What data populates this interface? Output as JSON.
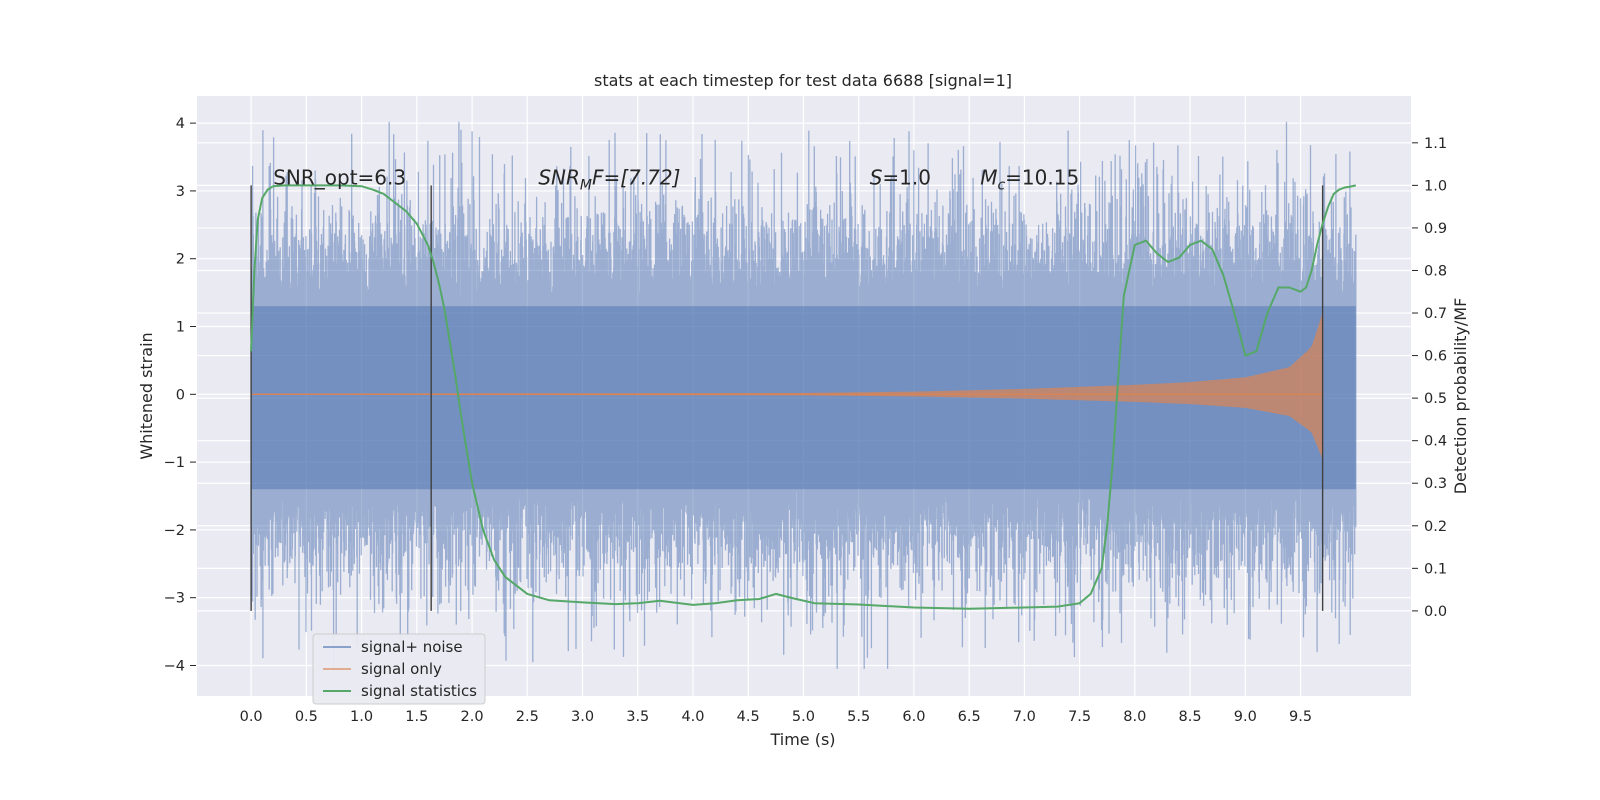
{
  "chart_data": {
    "type": "line",
    "title": "stats at each timestep for test data 6688 [signal=1]",
    "xlabel": "Time (s)",
    "ylabel_left": "Whitened strain",
    "ylabel_right": "Detection probability/MF",
    "xlim": [
      -0.49,
      10.5
    ],
    "ylim_left": [
      -4.45,
      4.4
    ],
    "ylim_right": [
      -0.2,
      1.21
    ],
    "x_ticks": [
      "0.0",
      "0.5",
      "1.0",
      "1.5",
      "2.0",
      "2.5",
      "3.0",
      "3.5",
      "4.0",
      "4.5",
      "5.0",
      "5.5",
      "6.0",
      "6.5",
      "7.0",
      "7.5",
      "8.0",
      "8.5",
      "9.0",
      "9.5"
    ],
    "y_ticks_left": [
      "4",
      "3",
      "2",
      "1",
      "0",
      "−1",
      "−2",
      "−3",
      "−4"
    ],
    "y_ticks_right": [
      "1.1",
      "1.0",
      "0.9",
      "0.8",
      "0.7",
      "0.6",
      "0.5",
      "0.4",
      "0.3",
      "0.2",
      "0.1",
      "0.0"
    ],
    "grid": true,
    "legend_position": "bottom-left",
    "annotations": [
      {
        "text": "SNR_opt=6.3",
        "x": 0.2,
        "y_right": 1.0
      },
      {
        "math": "SNR",
        "sub": "M",
        "rest": "F=[7.72]",
        "x": 2.6,
        "y_right": 1.0
      },
      {
        "math": "S",
        "rest": "=1.0",
        "x": 5.6,
        "y_right": 1.0
      },
      {
        "math": "M",
        "sub": "c",
        "rest": "=10.15",
        "x": 6.6,
        "y_right": 1.0
      }
    ],
    "vlines": [
      0.0,
      1.63,
      9.7
    ],
    "vline_range_right": [
      0.0,
      1.0
    ],
    "series": [
      {
        "name": "signal+ noise",
        "color": "#4c72b0",
        "axis": "left",
        "core_band": [
          -1.4,
          1.3
        ],
        "extent": [
          -4.05,
          4.02
        ],
        "t_start": 0.0,
        "t_end": 10.0
      },
      {
        "name": "signal only",
        "color": "#dd8452",
        "axis": "left",
        "amplitude_points": [
          [
            0.0,
            0.01
          ],
          [
            5.0,
            0.02
          ],
          [
            6.0,
            0.04
          ],
          [
            7.0,
            0.08
          ],
          [
            8.0,
            0.14
          ],
          [
            8.5,
            0.18
          ],
          [
            9.0,
            0.25
          ],
          [
            9.4,
            0.4
          ],
          [
            9.6,
            0.7
          ],
          [
            9.7,
            1.2
          ]
        ],
        "t_end": 9.7
      },
      {
        "name": "signal statistics",
        "color": "#55a868",
        "axis": "right",
        "x": [
          0.0,
          0.03,
          0.06,
          0.1,
          0.15,
          0.2,
          0.3,
          0.5,
          0.8,
          1.0,
          1.1,
          1.2,
          1.3,
          1.4,
          1.5,
          1.6,
          1.65,
          1.7,
          1.75,
          1.8,
          1.85,
          1.9,
          1.95,
          2.0,
          2.1,
          2.2,
          2.3,
          2.5,
          2.7,
          3.0,
          3.3,
          3.5,
          3.7,
          4.0,
          4.2,
          4.4,
          4.6,
          4.75,
          4.9,
          5.1,
          5.5,
          6.0,
          6.5,
          7.0,
          7.3,
          7.5,
          7.6,
          7.7,
          7.75,
          7.8,
          7.85,
          7.9,
          8.0,
          8.1,
          8.2,
          8.3,
          8.4,
          8.5,
          8.6,
          8.7,
          8.8,
          8.9,
          9.0,
          9.1,
          9.2,
          9.3,
          9.4,
          9.5,
          9.55,
          9.6,
          9.65,
          9.7,
          9.75,
          9.8,
          9.85,
          9.9,
          9.95,
          10.0
        ],
        "y": [
          0.61,
          0.8,
          0.92,
          0.97,
          0.99,
          0.998,
          1.0,
          1.0,
          1.0,
          0.998,
          0.99,
          0.98,
          0.96,
          0.94,
          0.91,
          0.86,
          0.82,
          0.77,
          0.71,
          0.63,
          0.55,
          0.46,
          0.38,
          0.3,
          0.19,
          0.12,
          0.08,
          0.04,
          0.025,
          0.02,
          0.016,
          0.018,
          0.024,
          0.014,
          0.018,
          0.025,
          0.028,
          0.04,
          0.03,
          0.018,
          0.015,
          0.008,
          0.005,
          0.008,
          0.01,
          0.018,
          0.04,
          0.1,
          0.2,
          0.35,
          0.55,
          0.74,
          0.86,
          0.87,
          0.84,
          0.82,
          0.83,
          0.86,
          0.87,
          0.85,
          0.79,
          0.7,
          0.6,
          0.61,
          0.7,
          0.76,
          0.76,
          0.75,
          0.76,
          0.8,
          0.86,
          0.91,
          0.95,
          0.98,
          0.99,
          0.995,
          0.997,
          1.0
        ]
      }
    ]
  }
}
